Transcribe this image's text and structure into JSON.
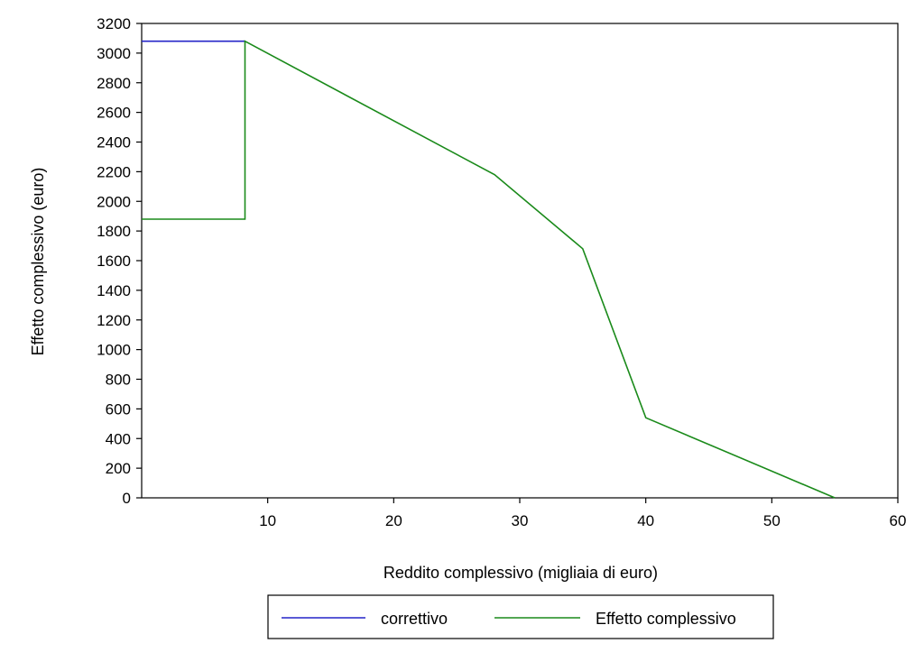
{
  "chart_data": {
    "type": "line",
    "xlabel": "Reddito complessivo (migliaia di euro)",
    "ylabel": "Effetto complessivo (euro)",
    "xlim": [
      0,
      60
    ],
    "ylim": [
      0,
      3200
    ],
    "x_ticks": [
      10,
      20,
      30,
      40,
      50,
      60
    ],
    "y_ticks": [
      0,
      200,
      400,
      600,
      800,
      1000,
      1200,
      1400,
      1600,
      1800,
      2000,
      2200,
      2400,
      2600,
      2800,
      3000,
      3200
    ],
    "grid": false,
    "legend_position": "bottom",
    "series": [
      {
        "name": "correttivo",
        "color": "#2424c8",
        "x": [
          0,
          8.2
        ],
        "y": [
          3080,
          3080
        ]
      },
      {
        "name": "Effetto complessivo",
        "color": "#1a8a1a",
        "x": [
          0,
          8.2,
          8.2,
          28,
          35,
          40,
          55
        ],
        "y": [
          1880,
          1880,
          3080,
          2180,
          1680,
          540,
          0
        ]
      }
    ]
  }
}
